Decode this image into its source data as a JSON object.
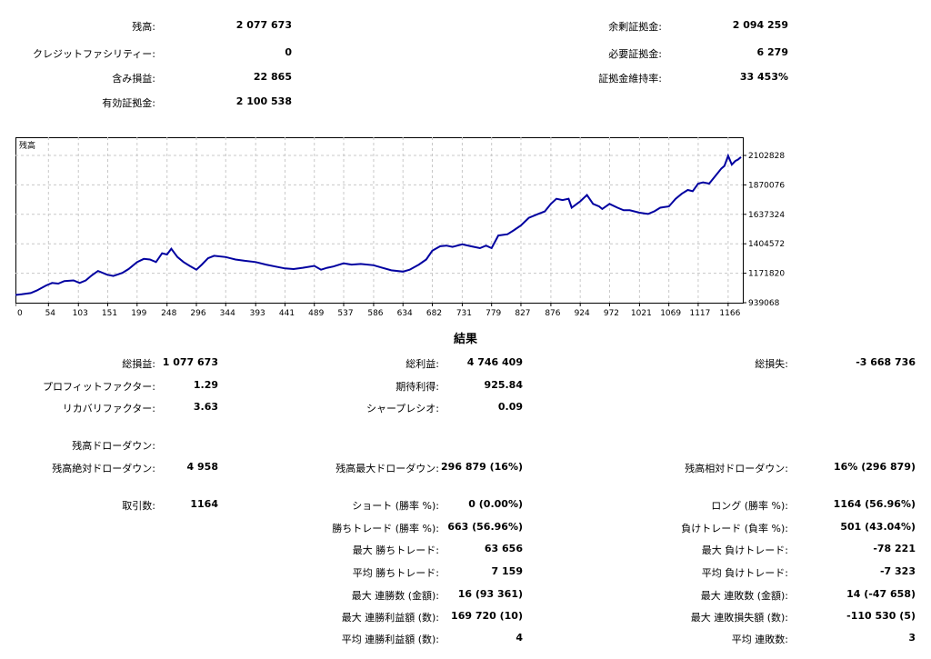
{
  "account": {
    "balance_label": "残高:",
    "balance_value": "2 077 673",
    "credit_label": "クレジットファシリティー:",
    "credit_value": "0",
    "floating_label": "含み損益:",
    "floating_value": "22 865",
    "equity_label": "有効証拠金:",
    "equity_value": "2 100 538",
    "free_margin_label": "余剰証拠金:",
    "free_margin_value": "2 094 259",
    "margin_label": "必要証拠金:",
    "margin_value": "6 279",
    "margin_level_label": "証拠金維持率:",
    "margin_level_value": "33 453%"
  },
  "chart_data": {
    "type": "line",
    "title": "残高",
    "x_ticks": [
      "0",
      "54",
      "103",
      "151",
      "199",
      "248",
      "296",
      "344",
      "393",
      "441",
      "489",
      "537",
      "586",
      "634",
      "682",
      "731",
      "779",
      "827",
      "876",
      "924",
      "972",
      "1021",
      "1069",
      "1117",
      "1166"
    ],
    "y_ticks": [
      "2102828",
      "1870076",
      "1637324",
      "1404572",
      "1171820",
      "939068"
    ],
    "xlim": [
      0,
      1190
    ],
    "ylim": [
      939068,
      2102828
    ],
    "grid": true,
    "series": [
      {
        "color": "#0000a0",
        "x": [
          0,
          10,
          25,
          35,
          50,
          60,
          70,
          80,
          95,
          105,
          115,
          125,
          135,
          150,
          160,
          175,
          185,
          199,
          210,
          220,
          230,
          240,
          248,
          255,
          265,
          275,
          285,
          296,
          305,
          315,
          325,
          344,
          360,
          375,
          393,
          410,
          425,
          441,
          455,
          470,
          489,
          500,
          510,
          520,
          537,
          550,
          565,
          586,
          600,
          615,
          634,
          645,
          660,
          672,
          682,
          695,
          705,
          715,
          731,
          745,
          760,
          770,
          779,
          790,
          805,
          815,
          827,
          840,
          855,
          866,
          876,
          885,
          895,
          905,
          910,
          924,
          935,
          945,
          955,
          960,
          972,
          985,
          995,
          1005,
          1021,
          1035,
          1045,
          1055,
          1062,
          1069,
          1080,
          1090,
          1100,
          1108,
          1117,
          1125,
          1135,
          1145,
          1155,
          1160,
          1166,
          1172,
          1178,
          1182,
          1187
        ],
        "y": [
          1000000,
          1005000,
          1015000,
          1035000,
          1075000,
          1095000,
          1090000,
          1110000,
          1115000,
          1095000,
          1115000,
          1155000,
          1190000,
          1160000,
          1150000,
          1175000,
          1205000,
          1260000,
          1285000,
          1280000,
          1260000,
          1330000,
          1320000,
          1365000,
          1300000,
          1260000,
          1230000,
          1200000,
          1240000,
          1290000,
          1310000,
          1300000,
          1280000,
          1270000,
          1260000,
          1240000,
          1225000,
          1210000,
          1205000,
          1215000,
          1230000,
          1200000,
          1215000,
          1225000,
          1250000,
          1240000,
          1245000,
          1235000,
          1215000,
          1195000,
          1185000,
          1200000,
          1240000,
          1280000,
          1350000,
          1385000,
          1390000,
          1380000,
          1400000,
          1385000,
          1370000,
          1390000,
          1370000,
          1470000,
          1480000,
          1510000,
          1550000,
          1610000,
          1640000,
          1660000,
          1720000,
          1760000,
          1750000,
          1760000,
          1690000,
          1740000,
          1790000,
          1720000,
          1700000,
          1680000,
          1720000,
          1690000,
          1670000,
          1670000,
          1650000,
          1640000,
          1660000,
          1690000,
          1695000,
          1700000,
          1760000,
          1800000,
          1830000,
          1820000,
          1880000,
          1890000,
          1880000,
          1940000,
          2000000,
          2020000,
          2100000,
          2030000,
          2060000,
          2070000,
          2090000
        ]
      }
    ]
  },
  "results": {
    "title": "結果",
    "net_profit_label": "総損益:",
    "net_profit_value": "1 077 673",
    "gross_profit_label": "総利益:",
    "gross_profit_value": "4 746 409",
    "gross_loss_label": "総損失:",
    "gross_loss_value": "-3 668 736",
    "profit_factor_label": "プロフィットファクター:",
    "profit_factor_value": "1.29",
    "expected_payoff_label": "期待利得:",
    "expected_payoff_value": "925.84",
    "recovery_factor_label": "リカバリファクター:",
    "recovery_factor_value": "3.63",
    "sharpe_label": "シャープレシオ:",
    "sharpe_value": "0.09",
    "balance_drawdown_label": "残高ドローダウン:",
    "abs_drawdown_label": "残高絶対ドローダウン:",
    "abs_drawdown_value": "4 958",
    "max_drawdown_label": "残高最大ドローダウン:",
    "max_drawdown_value": "296 879 (16%)",
    "rel_drawdown_label": "残高相対ドローダウン:",
    "rel_drawdown_value": "16% (296 879)",
    "trades_label": "取引数:",
    "trades_value": "1164",
    "short_label": "ショート (勝率 %):",
    "short_value": "0 (0.00%)",
    "long_label": "ロング (勝率 %):",
    "long_value": "1164 (56.96%)",
    "win_trades_label": "勝ちトレード (勝率 %):",
    "win_trades_value": "663 (56.96%)",
    "loss_trades_label": "負けトレード (負率 %):",
    "loss_trades_value": "501 (43.04%)",
    "max_win_label": "最大 勝ちトレード:",
    "max_win_value": "63 656",
    "max_loss_label": "最大 負けトレード:",
    "max_loss_value": "-78 221",
    "avg_win_label": "平均 勝ちトレード:",
    "avg_win_value": "7 159",
    "avg_loss_label": "平均 負けトレード:",
    "avg_loss_value": "-7 323",
    "max_consec_wins_label": "最大 連勝数 (金額):",
    "max_consec_wins_value": "16 (93 361)",
    "max_consec_losses_label": "最大 連敗数 (金額):",
    "max_consec_losses_value": "14 (-47 658)",
    "max_consec_profit_label": "最大 連勝利益額 (数):",
    "max_consec_profit_value": "169 720 (10)",
    "max_consec_loss_label": "最大 連敗損失額 (数):",
    "max_consec_loss_value": "-110 530 (5)",
    "avg_consec_wins_label": "平均 連勝利益額 (数):",
    "avg_consec_wins_value": "4",
    "avg_consec_losses_label": "平均 連敗数:",
    "avg_consec_losses_value": "3"
  }
}
